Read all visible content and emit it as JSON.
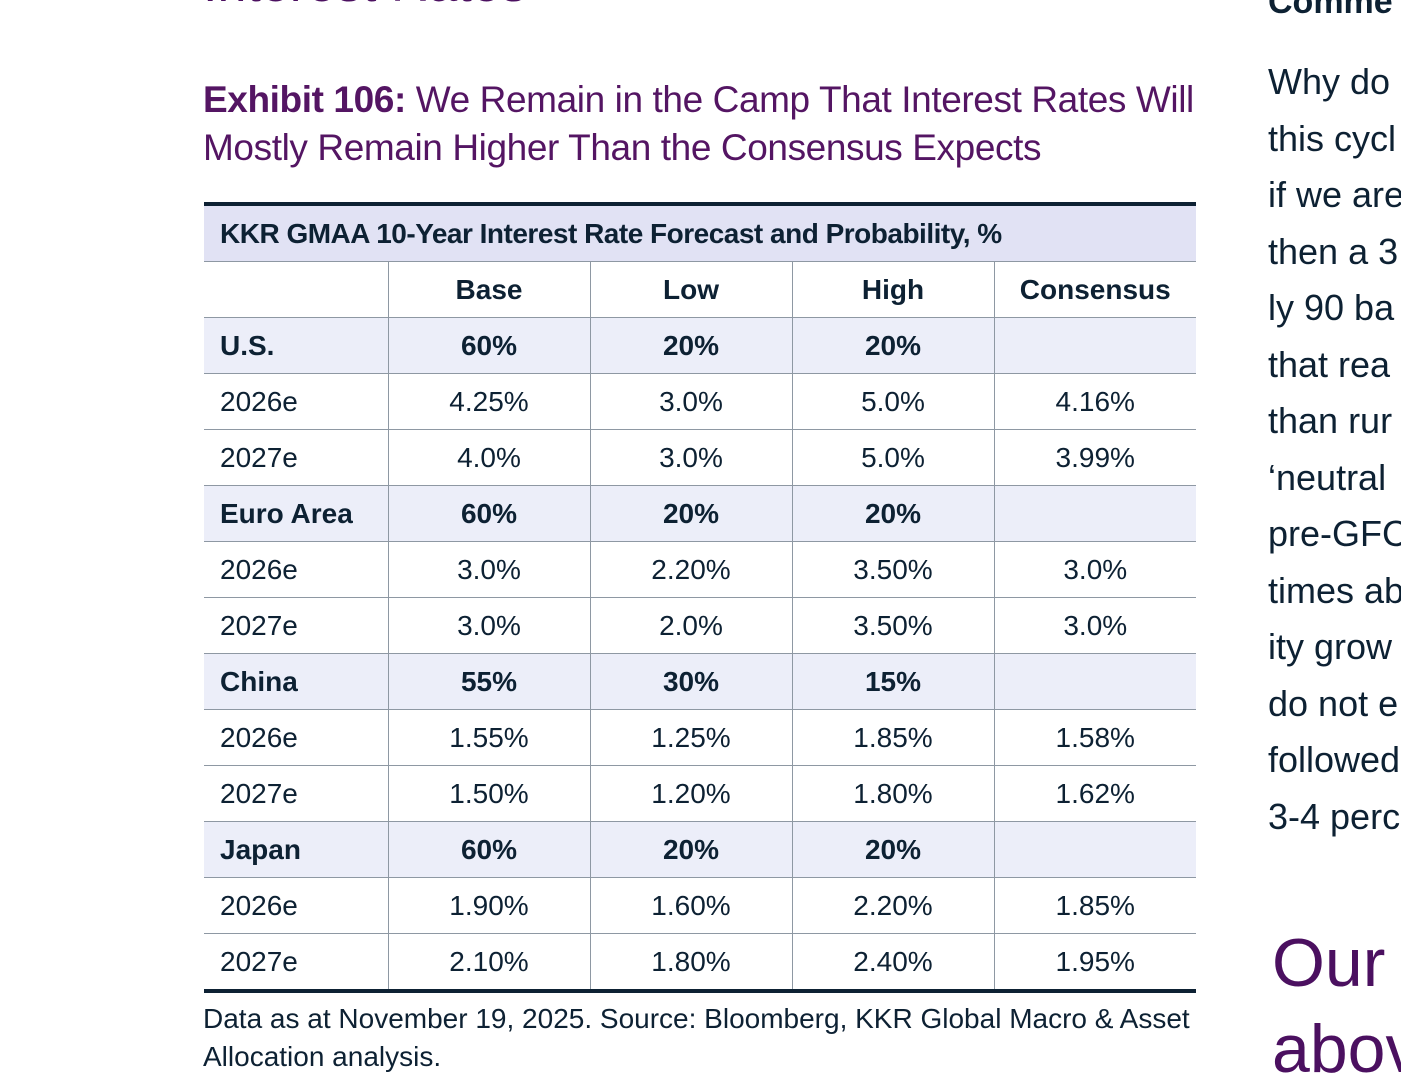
{
  "page": {
    "top_heading": "Interest Rates"
  },
  "exhibit": {
    "label": "Exhibit 106:",
    "title": " We Remain in the Camp That Interest Rates Will Mostly Remain Higher Than the Consensus Expects"
  },
  "table": {
    "title": "KKR GMAA 10-Year Interest Rate Forecast and Probability, %",
    "columns": [
      "",
      "Base",
      "Low",
      "High",
      "Consensus"
    ],
    "rows": [
      {
        "type": "region",
        "cells": [
          "U.S.",
          "60%",
          "20%",
          "20%",
          ""
        ]
      },
      {
        "type": "year",
        "cells": [
          "2026e",
          "4.25%",
          "3.0%",
          "5.0%",
          "4.16%"
        ]
      },
      {
        "type": "year",
        "cells": [
          "2027e",
          "4.0%",
          "3.0%",
          "5.0%",
          "3.99%"
        ]
      },
      {
        "type": "region",
        "cells": [
          "Euro Area",
          "60%",
          "20%",
          "20%",
          ""
        ]
      },
      {
        "type": "year",
        "cells": [
          "2026e",
          "3.0%",
          "2.20%",
          "3.50%",
          "3.0%"
        ]
      },
      {
        "type": "year",
        "cells": [
          "2027e",
          "3.0%",
          "2.0%",
          "3.50%",
          "3.0%"
        ]
      },
      {
        "type": "region",
        "cells": [
          "China",
          "55%",
          "30%",
          "15%",
          ""
        ]
      },
      {
        "type": "year",
        "cells": [
          "2026e",
          "1.55%",
          "1.25%",
          "1.85%",
          "1.58%"
        ]
      },
      {
        "type": "year",
        "cells": [
          "2027e",
          "1.50%",
          "1.20%",
          "1.80%",
          "1.62%"
        ]
      },
      {
        "type": "region",
        "cells": [
          "Japan",
          "60%",
          "20%",
          "20%",
          ""
        ]
      },
      {
        "type": "year",
        "cells": [
          "2026e",
          "1.90%",
          "1.60%",
          "2.20%",
          "1.85%"
        ]
      },
      {
        "type": "year",
        "cells": [
          "2027e",
          "2.10%",
          "1.80%",
          "2.40%",
          "1.95%"
        ]
      }
    ],
    "source": "Data as at November 19, 2025. Source: Bloomberg, KKR Global Macro & Asset Allocation analysis."
  },
  "side_column": {
    "heading": "Comme",
    "lines": [
      "Why do",
      "this cycl",
      "if we are",
      "then a 3",
      "ly 90 ba",
      "that rea",
      "than rur",
      "‘neutral",
      "pre-GFC",
      "times ab",
      "ity grow",
      "do not e",
      "followed",
      "3-4 perc"
    ],
    "pull_quote_lines": [
      "Our",
      "abov"
    ]
  },
  "colors": {
    "heading_purple": "#541563",
    "ink": "#0d2133",
    "table_title_bg": "#e1e2f4",
    "region_row_bg": "#eceef9",
    "grid_line": "#8e98a3"
  }
}
